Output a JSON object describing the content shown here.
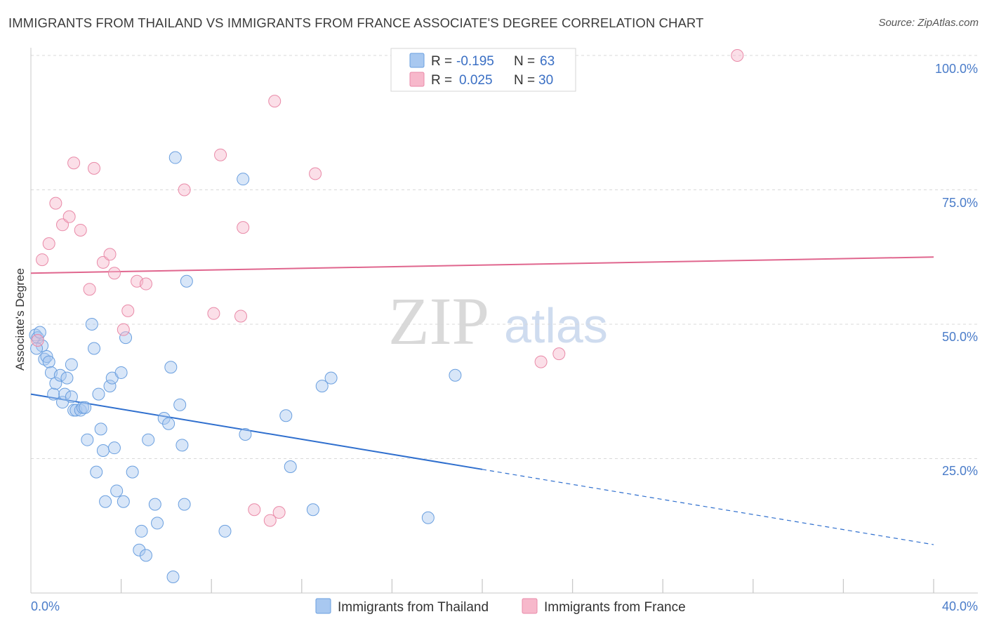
{
  "header": {
    "title": "IMMIGRANTS FROM THAILAND VS IMMIGRANTS FROM FRANCE ASSOCIATE'S DEGREE CORRELATION CHART",
    "source": "Source: ZipAtlas.com"
  },
  "watermark": {
    "zip": "ZIP",
    "atlas": "atlas"
  },
  "colors": {
    "thailand_fill": "#a8c8f0",
    "thailand_stroke": "#6a9fdf",
    "thailand_line": "#2f6fce",
    "france_fill": "#f7b8cb",
    "france_stroke": "#e98aa8",
    "france_line": "#e0668e",
    "grid": "#d8d8d8",
    "axis_label": "#4a7cc9"
  },
  "legend": {
    "rows": [
      {
        "r_label": "R =",
        "r_value": "-0.195",
        "n_label": "N =",
        "n_value": "63"
      },
      {
        "r_label": "R =",
        "r_value": "0.025",
        "n_label": "N =",
        "n_value": "30"
      }
    ]
  },
  "bottom_legend": {
    "thailand": "Immigrants from Thailand",
    "france": "Immigrants from France"
  },
  "chart_data": {
    "type": "scatter",
    "title": "IMMIGRANTS FROM THAILAND VS IMMIGRANTS FROM FRANCE ASSOCIATE'S DEGREE CORRELATION CHART",
    "xlabel": "",
    "ylabel": "Associate's Degree",
    "xlim": [
      0,
      40
    ],
    "ylim": [
      0,
      100
    ],
    "x_tick_labels": [
      "0.0%",
      "40.0%"
    ],
    "y_tick_labels": [
      "100.0%",
      "75.0%",
      "50.0%",
      "25.0%"
    ],
    "y_ticks": [
      100,
      75,
      50,
      25
    ],
    "series": [
      {
        "name": "Immigrants from Thailand",
        "r": -0.195,
        "n": 63,
        "trend": {
          "x0": 0,
          "y0": 37,
          "x1": 20,
          "y1": 23,
          "dash_x1": 40,
          "dash_y1": 9
        },
        "points": [
          [
            0.2,
            48
          ],
          [
            0.3,
            47.5
          ],
          [
            0.5,
            46
          ],
          [
            0.6,
            43.5
          ],
          [
            0.7,
            44
          ],
          [
            0.8,
            43
          ],
          [
            0.9,
            41
          ],
          [
            1.0,
            37
          ],
          [
            1.1,
            39
          ],
          [
            1.3,
            40.5
          ],
          [
            1.4,
            35.5
          ],
          [
            1.5,
            37
          ],
          [
            1.6,
            40
          ],
          [
            1.8,
            36.5
          ],
          [
            1.8,
            42.5
          ],
          [
            1.9,
            34
          ],
          [
            2.0,
            34
          ],
          [
            2.2,
            34
          ],
          [
            2.3,
            34.5
          ],
          [
            2.4,
            34.5
          ],
          [
            2.5,
            28.5
          ],
          [
            2.7,
            50
          ],
          [
            2.8,
            45.5
          ],
          [
            2.9,
            22.5
          ],
          [
            3.0,
            37
          ],
          [
            3.1,
            30.5
          ],
          [
            3.2,
            26.5
          ],
          [
            3.3,
            17
          ],
          [
            3.5,
            38.5
          ],
          [
            3.6,
            40
          ],
          [
            3.7,
            27
          ],
          [
            3.8,
            19
          ],
          [
            4.0,
            41
          ],
          [
            4.1,
            17
          ],
          [
            4.2,
            47.5
          ],
          [
            4.5,
            22.5
          ],
          [
            4.8,
            8
          ],
          [
            4.9,
            11.5
          ],
          [
            5.1,
            7
          ],
          [
            5.2,
            28.5
          ],
          [
            5.5,
            16.5
          ],
          [
            5.6,
            13
          ],
          [
            5.9,
            32.5
          ],
          [
            6.1,
            31.5
          ],
          [
            6.2,
            42
          ],
          [
            6.3,
            3
          ],
          [
            6.4,
            81
          ],
          [
            6.6,
            35
          ],
          [
            6.7,
            27.5
          ],
          [
            6.8,
            16.5
          ],
          [
            6.9,
            58
          ],
          [
            8.6,
            11.5
          ],
          [
            9.4,
            77
          ],
          [
            9.5,
            29.5
          ],
          [
            11.3,
            33
          ],
          [
            11.5,
            23.5
          ],
          [
            12.5,
            15.5
          ],
          [
            12.9,
            38.5
          ],
          [
            13.3,
            40
          ],
          [
            17.6,
            14
          ],
          [
            18.8,
            40.5
          ],
          [
            0.25,
            45.5
          ],
          [
            0.4,
            48.5
          ]
        ]
      },
      {
        "name": "Immigrants from France",
        "r": 0.025,
        "n": 30,
        "trend": {
          "x0": 0,
          "y0": 59.5,
          "x1": 40,
          "y1": 62.5
        },
        "points": [
          [
            0.3,
            47
          ],
          [
            0.5,
            62
          ],
          [
            0.8,
            65
          ],
          [
            1.1,
            72.5
          ],
          [
            1.4,
            68.5
          ],
          [
            1.7,
            70
          ],
          [
            1.9,
            80
          ],
          [
            2.2,
            67.5
          ],
          [
            2.6,
            56.5
          ],
          [
            2.8,
            79
          ],
          [
            3.2,
            61.5
          ],
          [
            3.5,
            63
          ],
          [
            3.7,
            59.5
          ],
          [
            4.1,
            49
          ],
          [
            4.3,
            52.5
          ],
          [
            4.7,
            58
          ],
          [
            5.1,
            57.5
          ],
          [
            6.8,
            75
          ],
          [
            8.1,
            52
          ],
          [
            8.4,
            81.5
          ],
          [
            9.3,
            51.5
          ],
          [
            9.4,
            68
          ],
          [
            9.9,
            15.5
          ],
          [
            10.6,
            13.5
          ],
          [
            10.8,
            91.5
          ],
          [
            11.0,
            15
          ],
          [
            12.6,
            78
          ],
          [
            22.6,
            43
          ],
          [
            23.4,
            44.5
          ],
          [
            31.3,
            100
          ]
        ]
      }
    ]
  }
}
